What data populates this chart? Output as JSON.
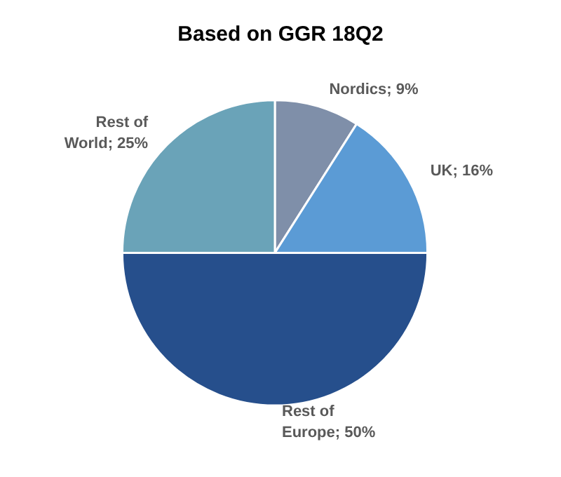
{
  "chart_data": {
    "type": "pie",
    "title": "Based on GGR 18Q2",
    "categories": [
      "Nordics",
      "UK",
      "Rest of Europe",
      "Rest of World"
    ],
    "values": [
      9,
      16,
      50,
      25
    ],
    "value_labels": [
      "9%",
      "16%",
      "50%",
      "25%"
    ],
    "colors": [
      "#7f8fa9",
      "#5b9bd5",
      "#264f8c",
      "#6aa3b8"
    ],
    "legend": false
  }
}
